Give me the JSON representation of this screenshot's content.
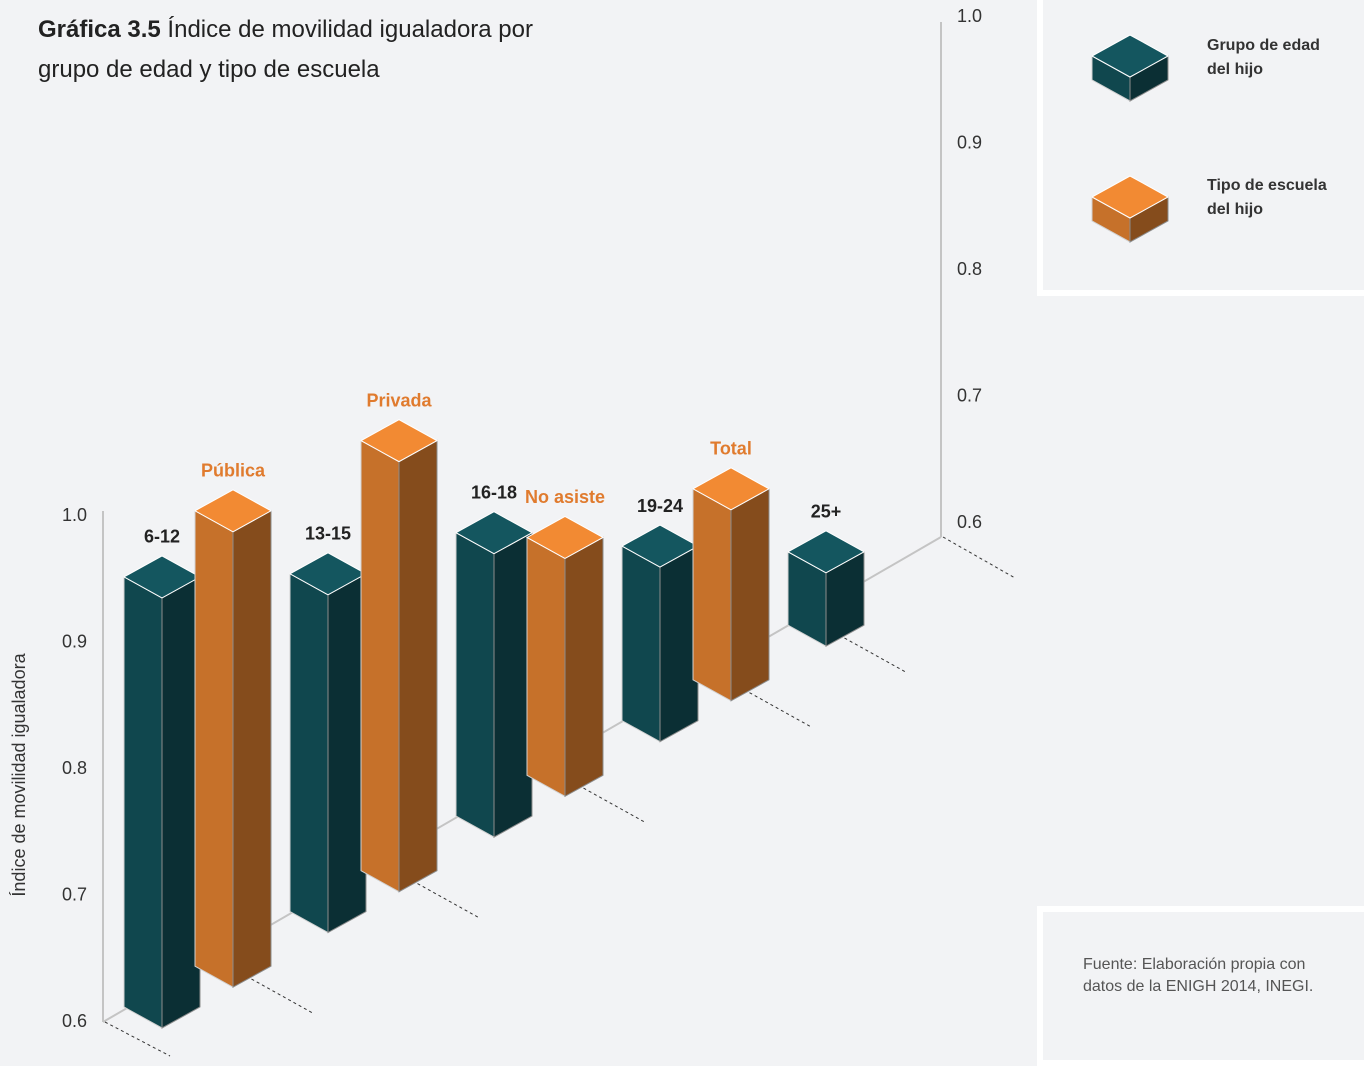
{
  "chart_data": {
    "type": "bar3d",
    "title_label": "Gráfica 3.5",
    "title": "Índice de movilidad igualadora por grupo de edad y tipo de escuela",
    "y_label": "Índice de movilidad igualadora",
    "categories": [
      "6-12",
      "Pública",
      "13-15",
      "Privada",
      "16-18",
      "No asiste",
      "19-24",
      "Total",
      "25+"
    ],
    "series": [
      {
        "name": "Grupo de edad del hijo",
        "color": "#14565f",
        "label_color": "#222222",
        "values": [
          0.94,
          null,
          0.867,
          null,
          0.824,
          null,
          0.738,
          null,
          0.658
        ]
      },
      {
        "name": "Tipo de escuela del hijo",
        "color": "#f28a33",
        "label_color": "#e07b2e",
        "values": [
          null,
          0.96,
          null,
          0.94,
          null,
          0.788,
          null,
          0.751,
          null
        ]
      }
    ],
    "ylim": [
      0.6,
      1.0
    ],
    "yticks": [
      0.6,
      0.7,
      0.8,
      0.9,
      {
        "value": 1.0,
        "label": "1.0"
      }
    ],
    "source": "Fuente: Elaboración propia con datos de la ENIGH 2014, INEGI."
  }
}
